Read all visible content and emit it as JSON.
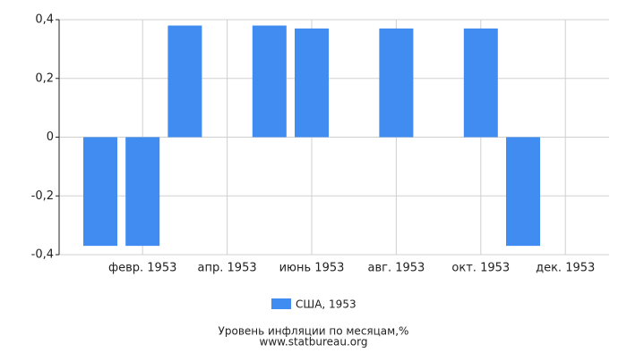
{
  "chart_data": {
    "type": "bar",
    "categories": [
      null,
      "февр. 1953",
      null,
      "апр. 1953",
      null,
      "июнь 1953",
      null,
      "авг. 1953",
      null,
      "окт. 1953",
      null,
      "дек. 1953"
    ],
    "series": [
      {
        "name": "США, 1953",
        "color": "#418cf0",
        "values": [
          -0.37,
          -0.37,
          0.38,
          0,
          0.38,
          0.37,
          0,
          0.37,
          0,
          0.37,
          -0.37,
          0
        ]
      }
    ],
    "ylim": [
      -0.4,
      0.4
    ],
    "yticks": [
      {
        "value": -0.4,
        "label": "-0,4"
      },
      {
        "value": -0.2,
        "label": "-0,2"
      },
      0,
      {
        "value": 0.2,
        "label": "0,2"
      },
      {
        "value": 0.4,
        "label": "0,4"
      }
    ],
    "grid": true,
    "legend": "bottom",
    "footer": [
      "Уровень инфляции по месяцам,%",
      "www.statbureau.org"
    ]
  }
}
